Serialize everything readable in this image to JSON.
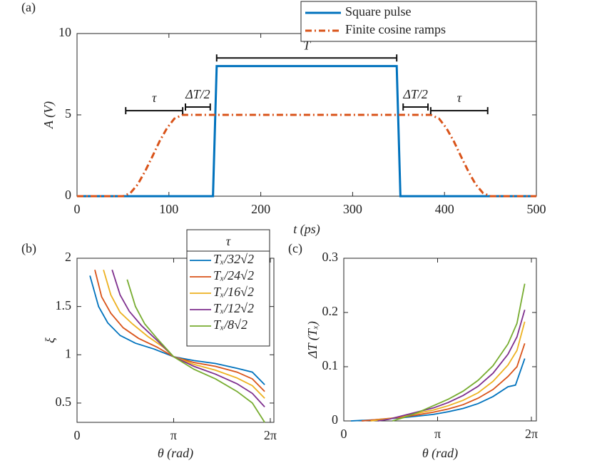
{
  "chart_data": [
    {
      "type": "line",
      "panel_label": "(a)",
      "xlabel": "t (ps)",
      "ylabel": "A (V)",
      "xlim": [
        0,
        500
      ],
      "xticks": [
        0,
        100,
        200,
        300,
        400,
        500
      ],
      "ylim": [
        0,
        10
      ],
      "yticks": [
        0,
        5,
        10
      ],
      "legend": "upper right",
      "series": [
        {
          "name": "Square pulse",
          "color": "#0072BD",
          "linestyle": "solid",
          "x": [
            0,
            148,
            152,
            348,
            352,
            500
          ],
          "values": [
            0,
            0,
            8,
            8,
            0,
            0
          ]
        },
        {
          "name": "Finite cosine ramps",
          "color": "#D95319",
          "linestyle": "dash-dot",
          "x": [
            0,
            50,
            58,
            66,
            74,
            82,
            90,
            98,
            106,
            115,
            385,
            394,
            402,
            410,
            418,
            426,
            434,
            442,
            450,
            500
          ],
          "values": [
            0,
            0,
            0.19,
            0.72,
            1.52,
            2.44,
            3.39,
            4.19,
            4.77,
            5,
            5,
            4.77,
            4.19,
            3.39,
            2.44,
            1.52,
            0.72,
            0.19,
            0,
            0
          ]
        }
      ],
      "annotations": [
        {
          "text": "τ",
          "x": [
            53,
            115
          ],
          "y": 5.26
        },
        {
          "text": "ΔT/2",
          "x": [
            118,
            145
          ],
          "y": 5.48
        },
        {
          "text": "T",
          "x": [
            152,
            348
          ],
          "y": 8.5
        },
        {
          "text": "ΔT/2",
          "x": [
            355,
            382
          ],
          "y": 5.48
        },
        {
          "text": "τ",
          "x": [
            385,
            447
          ],
          "y": 5.26
        }
      ]
    },
    {
      "type": "line",
      "panel_label": "(b)",
      "xlabel": "θ (rad)",
      "ylabel": "ξ",
      "xlim": [
        0,
        6.4
      ],
      "xticks": [
        0,
        {
          "value": 3.14159,
          "label": "π"
        },
        {
          "value": 6.28319,
          "label": "2π"
        }
      ],
      "ylim": [
        0.3,
        2
      ],
      "yticks": [
        0.5,
        1,
        1.5,
        2
      ],
      "legend": "upper center",
      "legend_title": "τ",
      "series": [
        {
          "name": "Tₓ/32√2",
          "color": "#0072BD",
          "x": [
            0.42,
            0.7,
            1.0,
            1.4,
            1.9,
            2.5,
            3.14,
            3.8,
            4.5,
            5.2,
            5.7,
            6.1
          ],
          "values": [
            1.82,
            1.5,
            1.33,
            1.2,
            1.12,
            1.06,
            0.98,
            0.94,
            0.91,
            0.86,
            0.82,
            0.69
          ]
        },
        {
          "name": "Tₓ/24√2",
          "color": "#D95319",
          "x": [
            0.58,
            0.8,
            1.1,
            1.5,
            2.0,
            2.6,
            3.14,
            3.8,
            4.5,
            5.2,
            5.7,
            6.1
          ],
          "values": [
            1.88,
            1.6,
            1.43,
            1.28,
            1.17,
            1.08,
            0.98,
            0.92,
            0.88,
            0.82,
            0.75,
            0.62
          ]
        },
        {
          "name": "Tₓ/16√2",
          "color": "#EDB120",
          "x": [
            0.86,
            1.1,
            1.4,
            1.8,
            2.3,
            2.8,
            3.14,
            3.8,
            4.5,
            5.2,
            5.7,
            6.1
          ],
          "values": [
            1.88,
            1.62,
            1.44,
            1.32,
            1.19,
            1.08,
            0.98,
            0.9,
            0.84,
            0.76,
            0.68,
            0.55
          ]
        },
        {
          "name": "Tₓ/12√2",
          "color": "#7E2F8E",
          "x": [
            1.14,
            1.4,
            1.7,
            2.1,
            2.6,
            3.14,
            3.8,
            4.5,
            5.2,
            5.7,
            6.1
          ],
          "values": [
            1.88,
            1.62,
            1.45,
            1.3,
            1.15,
            0.98,
            0.88,
            0.8,
            0.7,
            0.6,
            0.46
          ]
        },
        {
          "name": "Tₓ/8√2",
          "color": "#77AC30",
          "x": [
            1.63,
            1.9,
            2.2,
            2.6,
            3.14,
            3.8,
            4.5,
            5.2,
            5.7,
            6.1
          ],
          "values": [
            1.78,
            1.5,
            1.32,
            1.17,
            0.98,
            0.85,
            0.75,
            0.62,
            0.5,
            0.3
          ]
        }
      ]
    },
    {
      "type": "line",
      "panel_label": "(c)",
      "xlabel": "θ (rad)",
      "ylabel": "ΔT (Tₓ)",
      "xlim": [
        0,
        6.45
      ],
      "xticks": [
        0,
        {
          "value": 3.14159,
          "label": "π"
        },
        {
          "value": 6.28319,
          "label": "2π"
        }
      ],
      "ylim": [
        0,
        0.3
      ],
      "yticks": [
        0,
        0.1,
        0.2,
        0.3
      ],
      "series": [
        {
          "color": "#0072BD",
          "x": [
            0.24,
            1,
            2,
            3,
            3.5,
            4,
            4.5,
            5,
            5.5,
            5.75,
            6.06
          ],
          "values": [
            0,
            0.002,
            0.006,
            0.012,
            0.017,
            0.023,
            0.032,
            0.045,
            0.063,
            0.066,
            0.115
          ]
        },
        {
          "color": "#D95319",
          "x": [
            0.6,
            1,
            2,
            3,
            3.5,
            4,
            4.5,
            5,
            5.5,
            5.8,
            6.06
          ],
          "values": [
            0,
            0.002,
            0.007,
            0.016,
            0.022,
            0.03,
            0.042,
            0.058,
            0.082,
            0.1,
            0.143
          ]
        },
        {
          "color": "#EDB120",
          "x": [
            0.9,
            1.5,
            2,
            3,
            3.5,
            4,
            4.5,
            5,
            5.5,
            5.8,
            6.06
          ],
          "values": [
            0,
            0.004,
            0.009,
            0.02,
            0.028,
            0.038,
            0.052,
            0.073,
            0.103,
            0.13,
            0.183
          ]
        },
        {
          "color": "#7E2F8E",
          "x": [
            1.14,
            1.5,
            2,
            3,
            3.5,
            4,
            4.5,
            5,
            5.5,
            5.8,
            6.06
          ],
          "values": [
            0,
            0.003,
            0.01,
            0.024,
            0.034,
            0.047,
            0.064,
            0.088,
            0.123,
            0.155,
            0.205
          ]
        },
        {
          "color": "#77AC30",
          "x": [
            1.63,
            2,
            2.5,
            3,
            3.5,
            4,
            4.5,
            5,
            5.5,
            5.8,
            6.06
          ],
          "values": [
            0,
            0.006,
            0.016,
            0.028,
            0.04,
            0.055,
            0.075,
            0.102,
            0.142,
            0.18,
            0.253
          ]
        }
      ]
    }
  ]
}
